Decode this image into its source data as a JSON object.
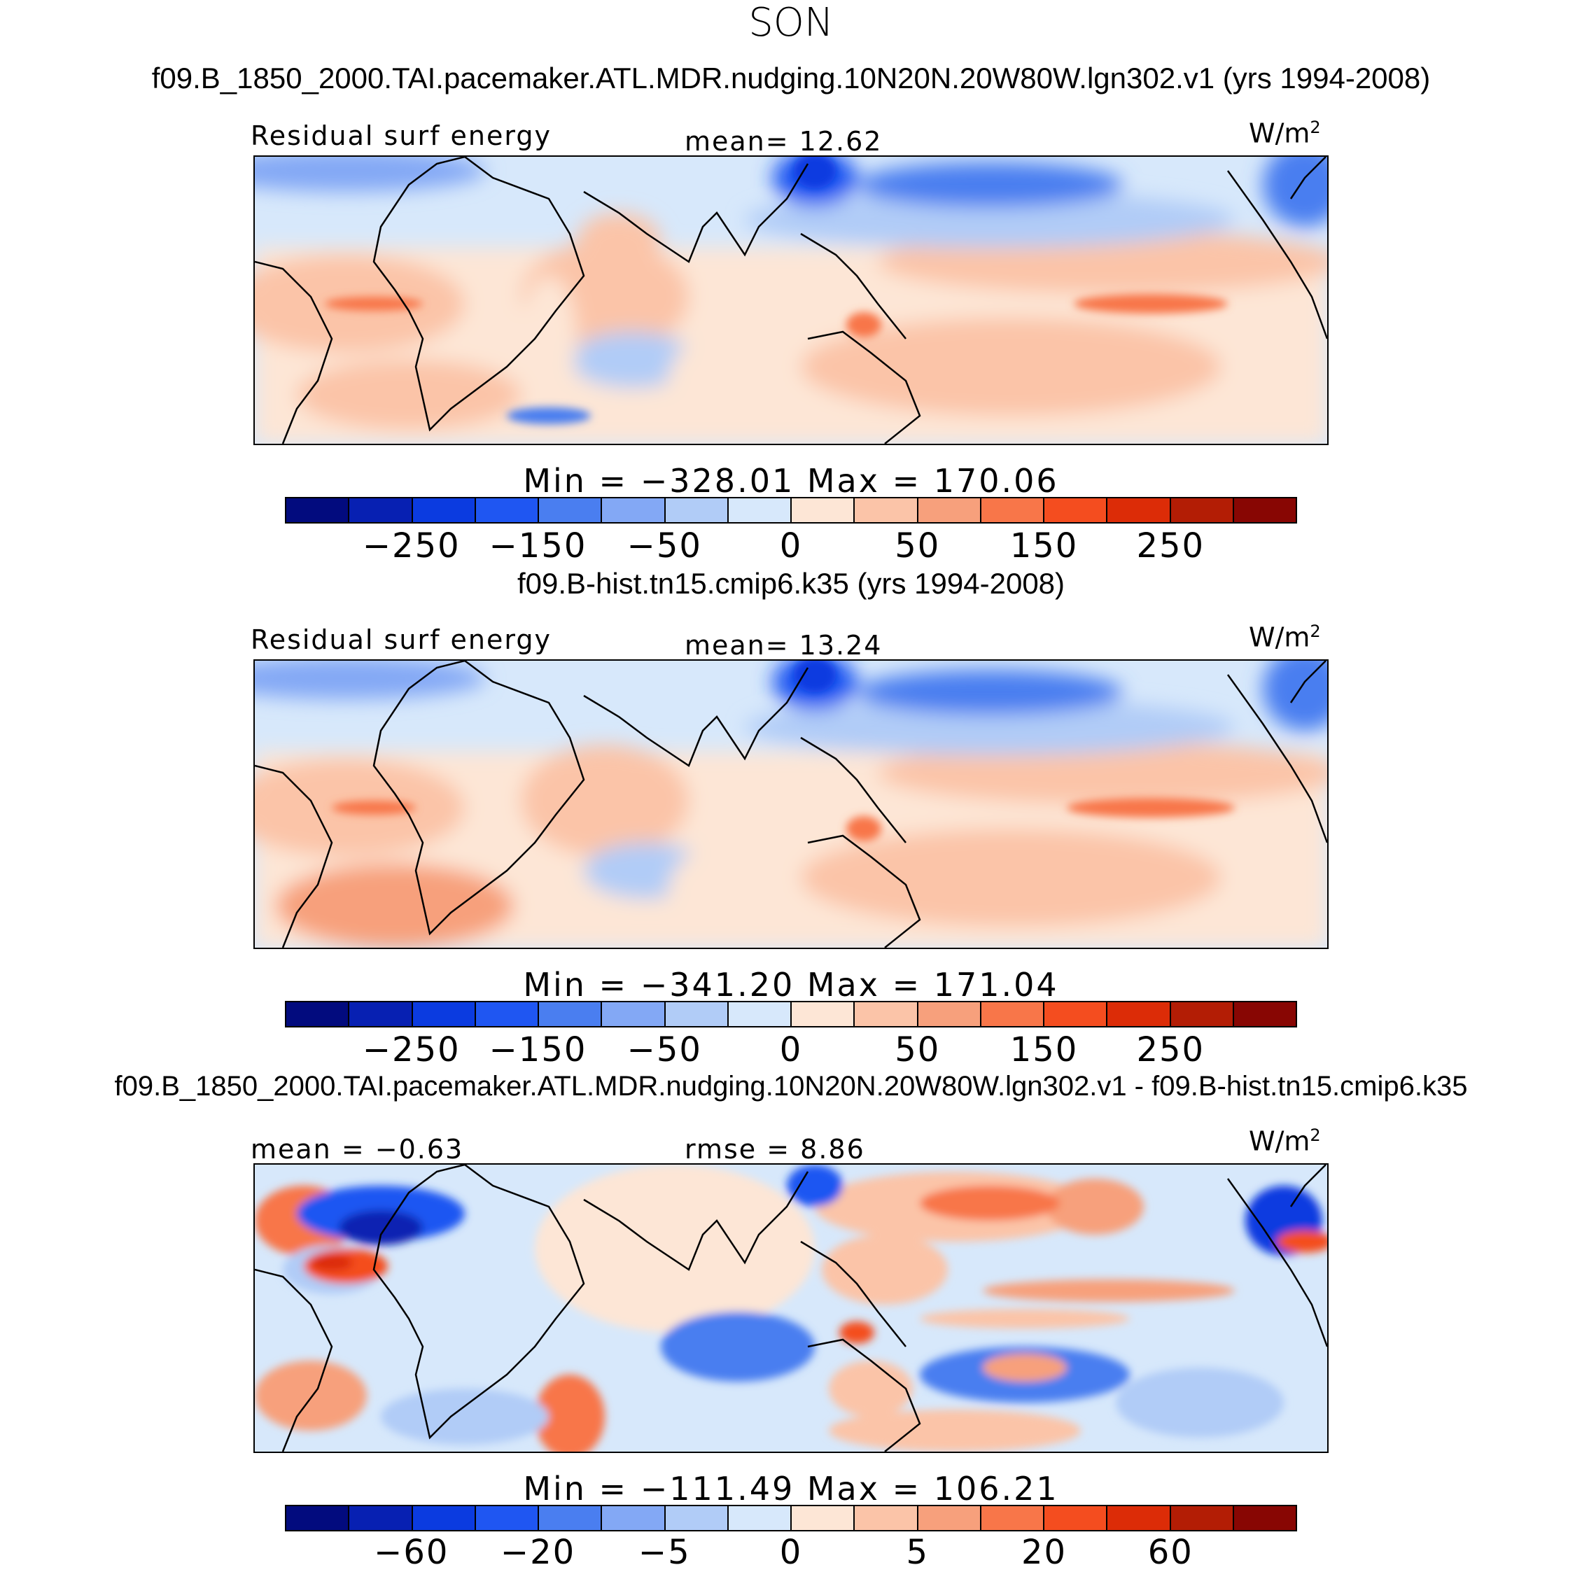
{
  "season": "SON",
  "colorbar_colors": [
    "#020b7e",
    "#0720b2",
    "#0b3be0",
    "#1f56f2",
    "#4a7ef0",
    "#83a8f5",
    "#b1ccf7",
    "#d7e8fb",
    "#fde6d6",
    "#fbc4a8",
    "#f7a07c",
    "#f87649",
    "#f44d1f",
    "#dc2c07",
    "#b31d05",
    "#880603"
  ],
  "panels": [
    {
      "title": "f09.B_1850_2000.TAI.pacemaker.ATL.MDR.nudging.10N20N.20W80W.lgn302.v1 (yrs 1994-2008)",
      "left_label": "Residual surf energy",
      "center_label": "mean=  12.62",
      "units": "W/m",
      "units_sup": "2",
      "minmax": "Min = −328.01 Max = 170.06",
      "ticks": [
        "−250",
        "−150",
        "−50",
        "0",
        "50",
        "150",
        "250"
      ]
    },
    {
      "title": "f09.B-hist.tn15.cmip6.k35 (yrs 1994-2008)",
      "left_label": "Residual surf energy",
      "center_label": "mean=  13.24",
      "units": "W/m",
      "units_sup": "2",
      "minmax": "Min = −341.20 Max = 171.04",
      "ticks": [
        "−250",
        "−150",
        "−50",
        "0",
        "50",
        "150",
        "250"
      ]
    },
    {
      "title": "f09.B_1850_2000.TAI.pacemaker.ATL.MDR.nudging.10N20N.20W80W.lgn302.v1 - f09.B-hist.tn15.cmip6.k35",
      "left_label": "mean =  −0.63",
      "center_label": "rmse =   8.86",
      "units": "W/m",
      "units_sup": "2",
      "minmax": "Min = −111.49 Max = 106.21",
      "ticks": [
        "−60",
        "−20",
        "−5",
        "0",
        "5",
        "20",
        "60"
      ]
    }
  ]
}
